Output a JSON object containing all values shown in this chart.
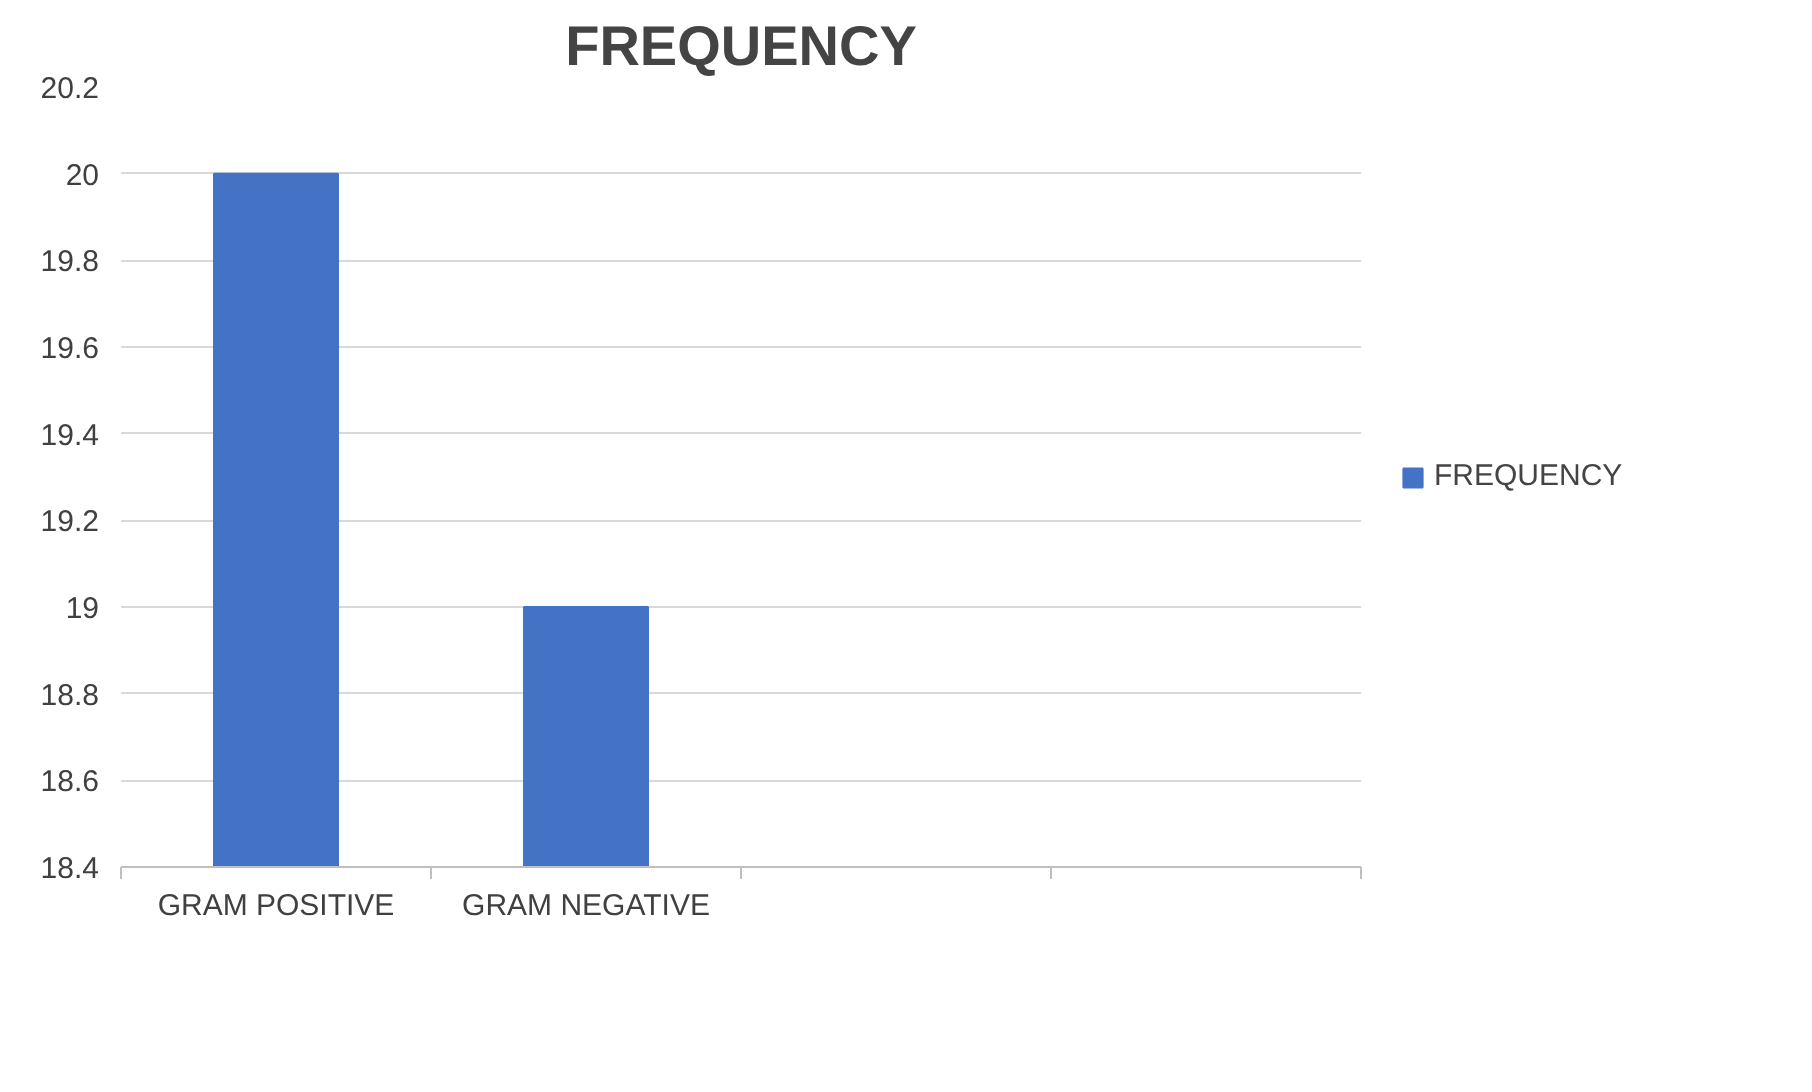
{
  "chart_data": {
    "type": "bar",
    "title": "FREQUENCY",
    "categories": [
      "GRAM POSITIVE",
      "GRAM NEGATIVE",
      null,
      null
    ],
    "series": [
      {
        "name": "FREQUENCY",
        "color": "#4472c4",
        "values": [
          20,
          19,
          null,
          null
        ]
      }
    ],
    "ylim": [
      18.4,
      20.2
    ],
    "yticks": [
      {
        "value": 18.4,
        "label": "18.4"
      },
      {
        "value": 18.6,
        "label": "18.6"
      },
      {
        "value": 18.8,
        "label": "18.8"
      },
      {
        "value": 19,
        "label": "19"
      },
      {
        "value": 19.2,
        "label": "19.2"
      },
      {
        "value": 19.4,
        "label": "19.4"
      },
      {
        "value": 19.6,
        "label": "19.6"
      },
      {
        "value": 19.8,
        "label": "19.8"
      },
      {
        "value": 20,
        "label": "20"
      },
      {
        "value": 20.2,
        "label": "20.2"
      }
    ],
    "grid": "y",
    "legend": "right"
  }
}
